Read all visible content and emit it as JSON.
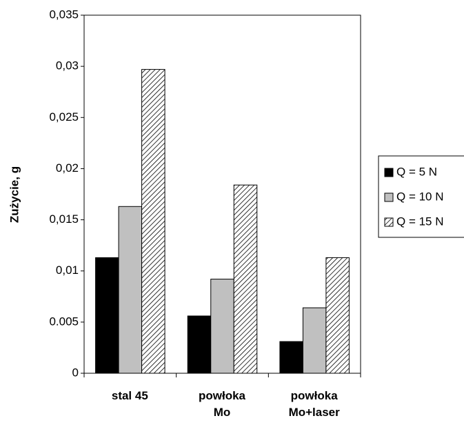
{
  "chart_data": {
    "type": "bar",
    "y_label": "Zużycie, g",
    "categories": [
      "stal 45",
      "powłoka Mo",
      "powłoka Mo+laser"
    ],
    "series": [
      {
        "name": "Q = 5 N",
        "color": "#000000",
        "values": [
          0.0113,
          0.0056,
          0.0031
        ]
      },
      {
        "name": "Q = 10 N",
        "color": "#c0c0c0",
        "values": [
          0.0163,
          0.0092,
          0.0064
        ]
      },
      {
        "name": "Q = 15 N",
        "color": "hatch",
        "values": [
          0.0297,
          0.0184,
          0.0113
        ]
      }
    ],
    "ylim": [
      0,
      0.035
    ],
    "yticks": [
      0,
      0.005,
      {
        "value": 0.01,
        "label": "0,01"
      },
      {
        "value": 0.015,
        "label": "0,015"
      },
      {
        "value": 0.02,
        "label": "0,02"
      },
      {
        "value": 0.025,
        "label": "0,025"
      },
      {
        "value": 0.03,
        "label": "0,03"
      },
      {
        "value": 0.035,
        "label": "0,035"
      }
    ],
    "legend": "right"
  }
}
